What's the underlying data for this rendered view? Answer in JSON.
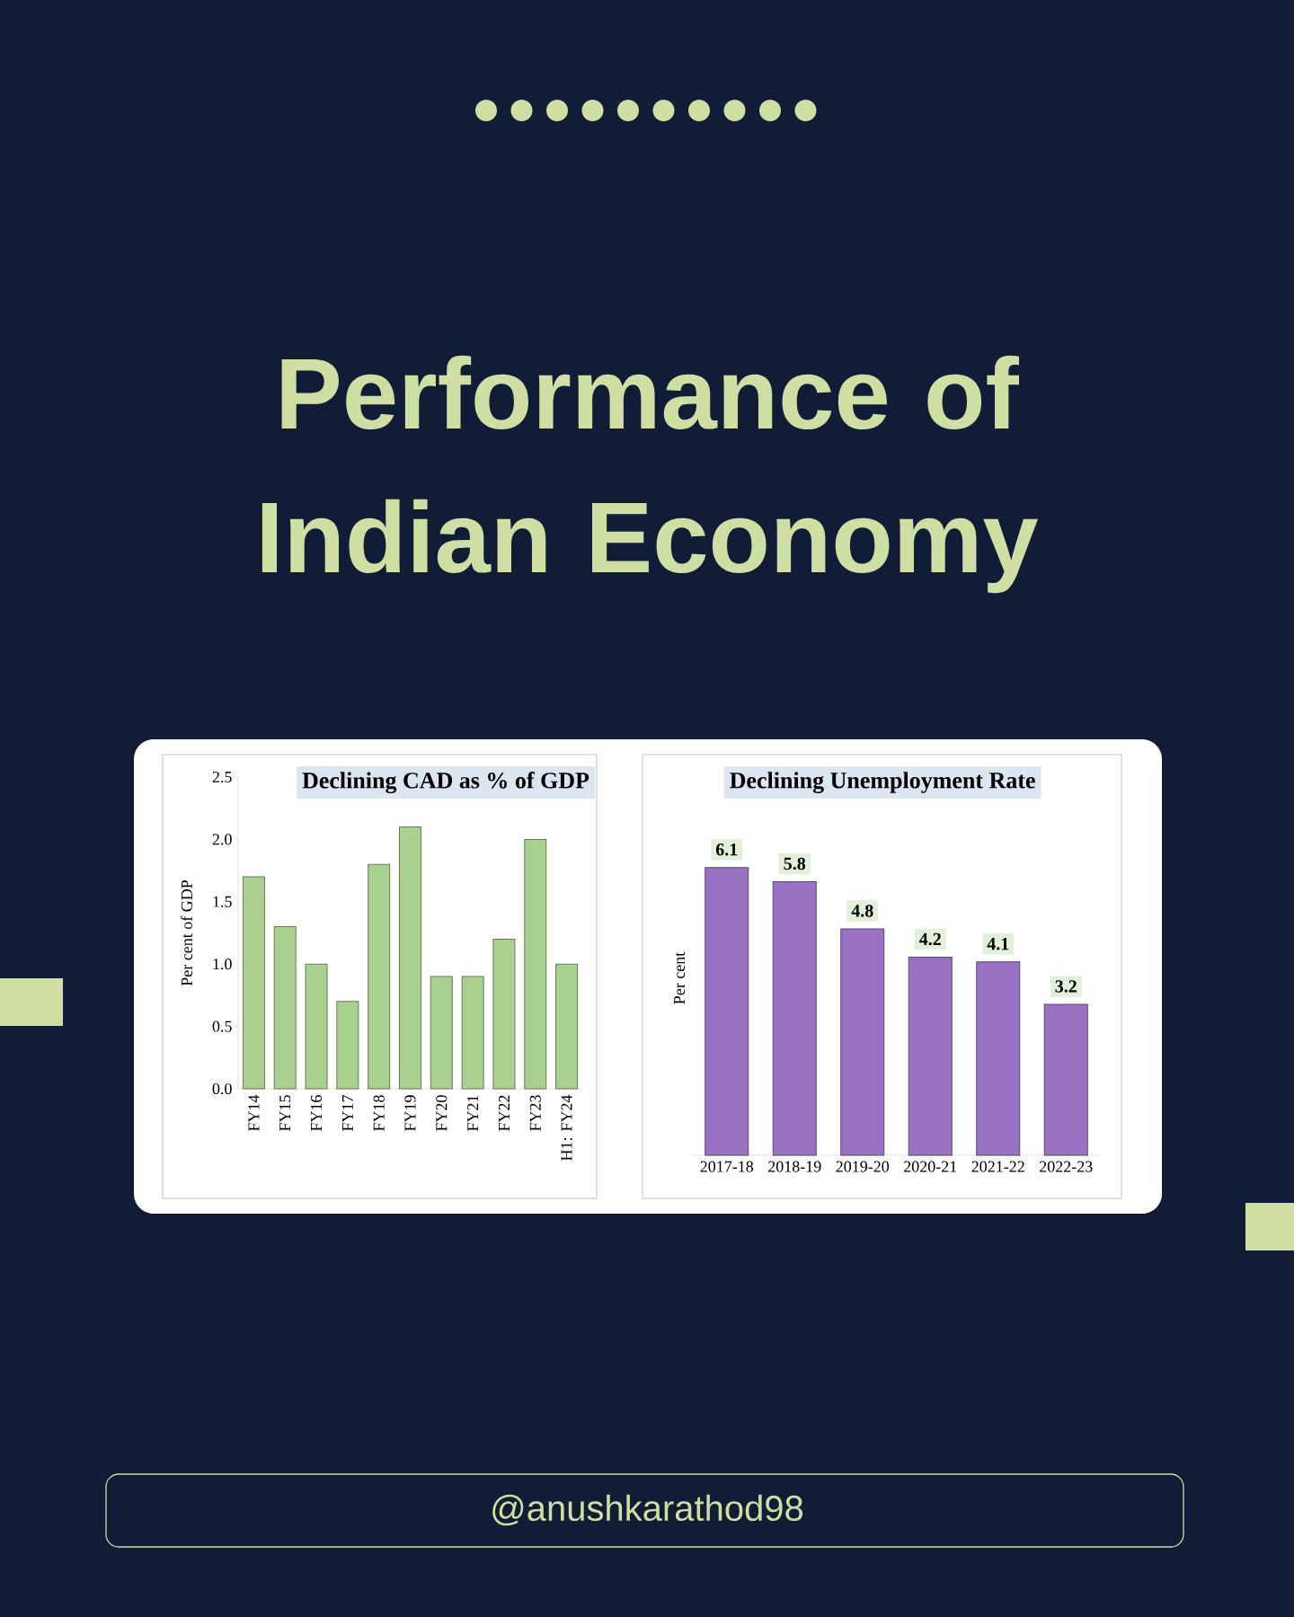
{
  "chart_data": [
    {
      "type": "other",
      "title": "Performance of Indian Economy",
      "annotations": [
        "@anushkarathod98"
      ]
    },
    {
      "type": "bar",
      "title": "Declining CAD as % of GDP",
      "ylabel": "Per cent of GDP",
      "categories": [
        "FY14",
        "FY15",
        "FY16",
        "FY17",
        "FY18",
        "FY19",
        "FY20",
        "FY21",
        "FY22",
        "FY23",
        "H1: FY24"
      ],
      "values": [
        1.7,
        1.3,
        1.0,
        0.7,
        1.8,
        2.1,
        0.9,
        0.9,
        1.2,
        2.0,
        1.0
      ],
      "color": "#a9d08e",
      "ylim": [
        0,
        2.5
      ],
      "yticks": [
        {
          "value": 0,
          "label": "0.0"
        },
        0.5,
        {
          "value": 1,
          "label": "1.0"
        },
        1.5,
        {
          "value": 2,
          "label": "2.0"
        },
        2.5
      ]
    },
    {
      "type": "bar",
      "title": "Declining Unemployment Rate",
      "ylabel": "Per cent",
      "categories": [
        "2017-18",
        "2018-19",
        "2019-20",
        "2020-21",
        "2021-22",
        "2022-23"
      ],
      "values": [
        6.1,
        5.8,
        4.8,
        4.2,
        4.1,
        3.2
      ],
      "color": "#9a72c2",
      "data_labels": true,
      "tick_labels": "x"
    }
  ]
}
